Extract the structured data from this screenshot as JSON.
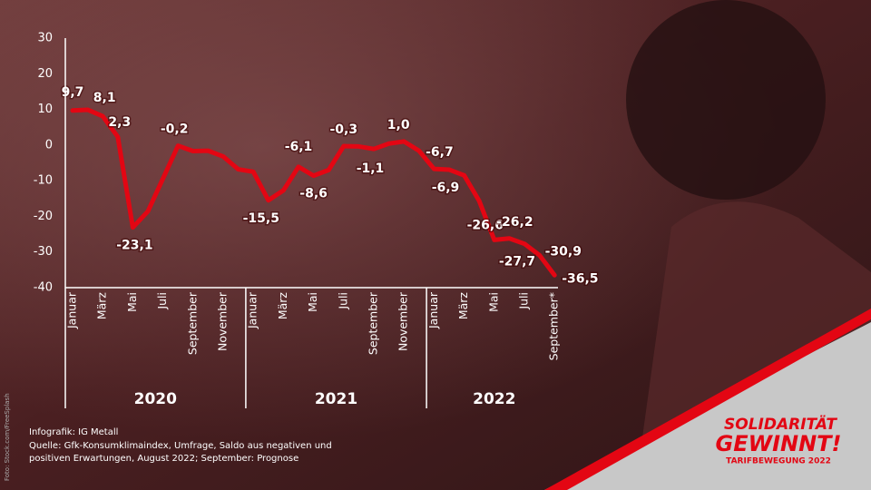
{
  "chart_data": {
    "type": "line",
    "categories": [
      "Januar",
      null,
      "März",
      null,
      "Mai",
      null,
      "Juli",
      null,
      "September",
      null,
      "November",
      null,
      "Januar",
      null,
      "März",
      null,
      "Mai",
      null,
      "Juli",
      null,
      "September",
      null,
      "November",
      null,
      "Januar",
      null,
      "März",
      null,
      "Mai",
      null,
      "Juli",
      null,
      "September*"
    ],
    "groups": [
      "2020",
      "2021",
      "2022"
    ],
    "values": [
      9.7,
      9.9,
      8.1,
      2.3,
      -23.1,
      -18.6,
      -9.4,
      -0.2,
      -1.7,
      -1.6,
      -3.2,
      -6.8,
      -7.5,
      -15.5,
      -12.7,
      -6.1,
      -8.6,
      -7.0,
      -0.3,
      -0.4,
      -1.1,
      0.4,
      1.0,
      -1.6,
      -6.7,
      -6.9,
      -8.5,
      -15.7,
      -26.6,
      -26.2,
      -27.7,
      -30.9,
      -36.5
    ],
    "value_labels": [
      "9,7",
      null,
      "8,1",
      "2,3",
      "-23,1",
      null,
      null,
      "-0,2",
      null,
      null,
      null,
      null,
      null,
      "-15,5",
      null,
      "-6,1",
      "-8,6",
      null,
      "-0,3",
      null,
      "-1,1",
      null,
      "1,0",
      null,
      "-6,7",
      "-6,9",
      null,
      null,
      "-26,6",
      "-26,2",
      "-27,7",
      "-30,9",
      "-36,5"
    ],
    "color": "#e30613",
    "ylim": [
      -40,
      30
    ],
    "yticks": [
      30,
      20,
      10,
      0,
      -10,
      -20,
      -30,
      -40
    ],
    "grid": false
  },
  "footer": [
    "Infografik: IG Metall",
    "Quelle: Gfk-Konsumklimaindex, Umfrage, Saldo aus negativen und",
    "positiven Erwartungen, August 2022; September: Prognose"
  ],
  "logo": {
    "line1": "SOLIDARITÄT",
    "line2": "GEWINNT!",
    "line3": "TARIFBEWEGUNG 2022"
  },
  "photo_credit": "Foto: Stock.com/FreeSplash"
}
